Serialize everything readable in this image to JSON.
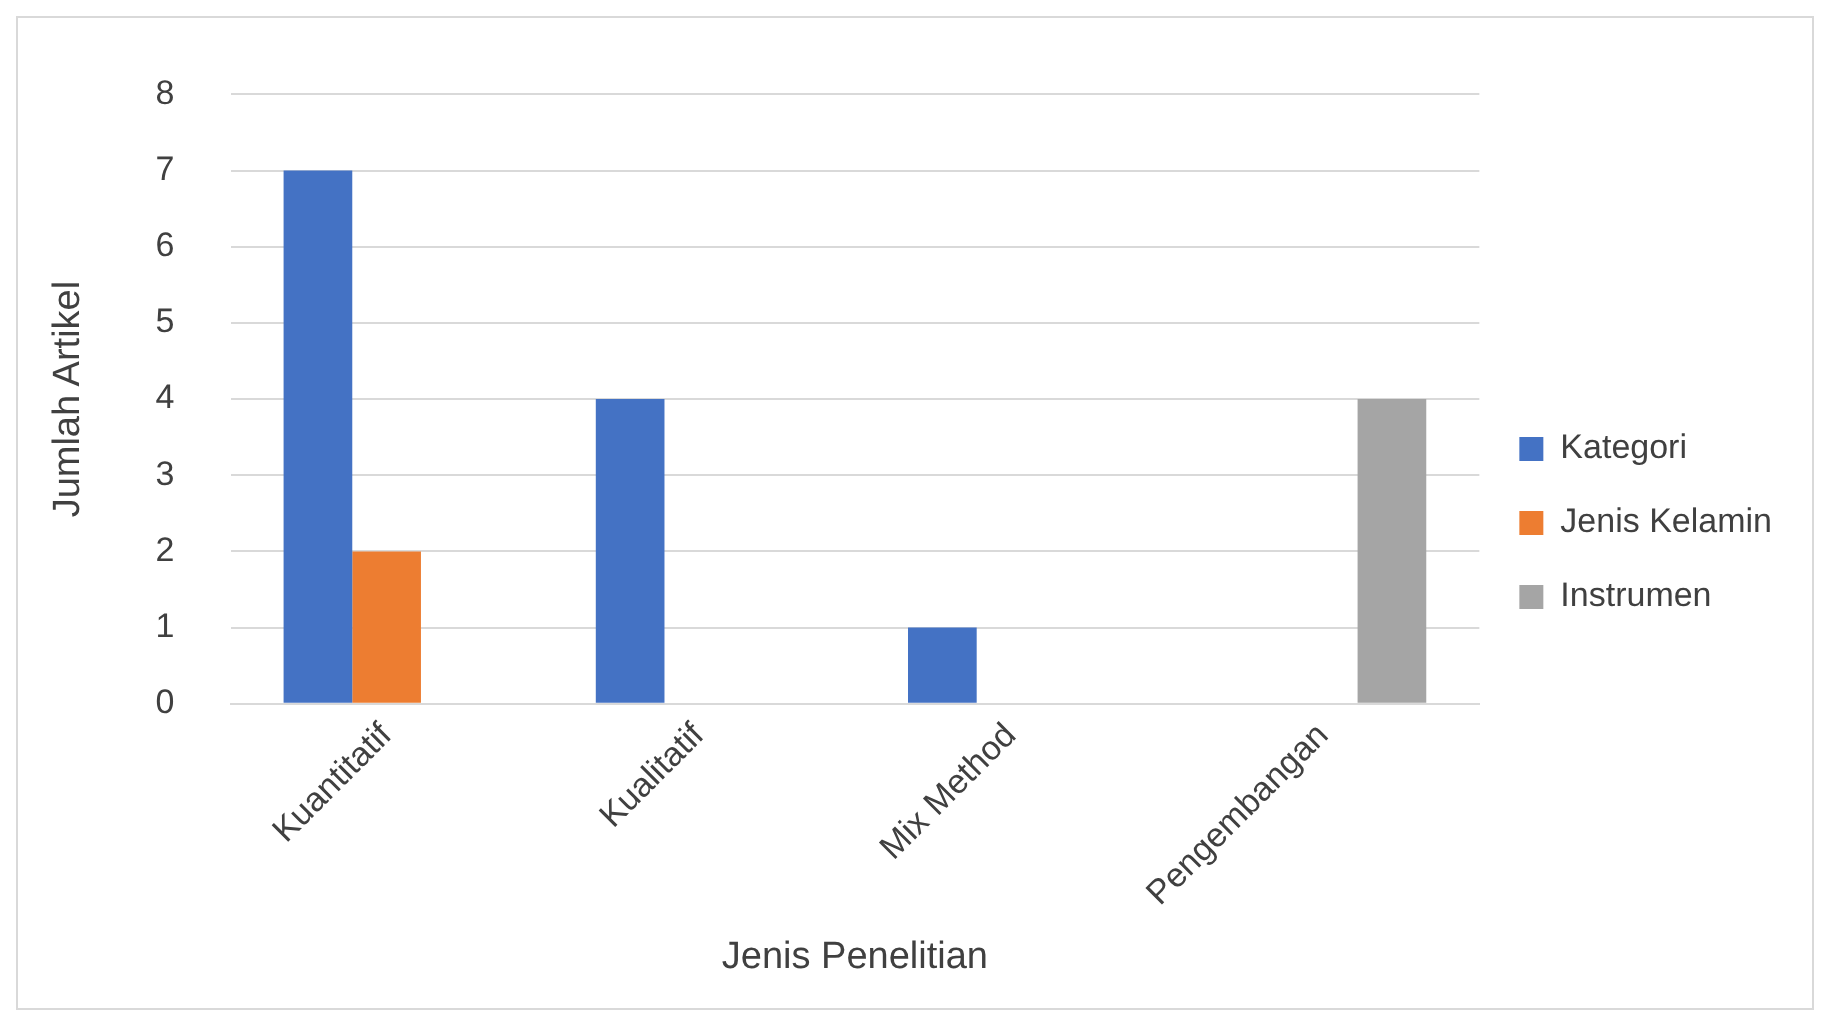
{
  "chart_data": {
    "type": "bar",
    "xlabel": "Jenis Penelitian",
    "ylabel": "Jumlah Artikel",
    "categories": [
      "Kuantitatif",
      "Kualitatif",
      "Mix Method",
      "Pengembangan"
    ],
    "series": [
      {
        "name": "Kategori",
        "color": "#4472c4",
        "values": [
          7,
          4,
          1,
          null
        ]
      },
      {
        "name": "Jenis Kelamin",
        "color": "#ed7d31",
        "values": [
          2,
          null,
          null,
          null
        ]
      },
      {
        "name": "Instrumen",
        "color": "#a5a5a5",
        "values": [
          null,
          null,
          null,
          4
        ]
      }
    ],
    "ylim": [
      0,
      8
    ],
    "yticks": [
      0,
      1,
      2,
      3,
      4,
      5,
      6,
      7,
      8
    ],
    "grid": "y",
    "legend": "right"
  }
}
